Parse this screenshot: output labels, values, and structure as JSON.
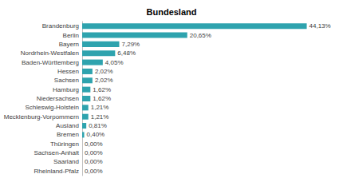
{
  "chart_data": {
    "type": "bar",
    "title": "Bundesland",
    "orientation": "horizontal",
    "categories": [
      "Brandenburg",
      "Berlin",
      "Bayern",
      "Nordrhein-Westfalen",
      "Baden-Württemberg",
      "Hessen",
      "Sachsen",
      "Hamburg",
      "Niedersachsen",
      "Schleswig-Holstein",
      "Mecklenburg-Vorpommern",
      "Ausland",
      "Bremen",
      "Thüringen",
      "Sachsen-Anhalt",
      "Saarland",
      "Rheinland-Pfalz"
    ],
    "values": [
      44.13,
      20.65,
      7.29,
      6.48,
      4.05,
      2.02,
      2.02,
      1.62,
      1.62,
      1.21,
      1.21,
      0.81,
      0.4,
      0,
      0,
      0,
      0
    ],
    "value_labels": [
      "44,13%",
      "20,65%",
      "7,29%",
      "6,48%",
      "4,05%",
      "2,02%",
      "2,02%",
      "1,62%",
      "1,62%",
      "1,21%",
      "1,21%",
      "0,81%",
      "0,40%",
      "0,00%",
      "0,00%",
      "0,00%",
      "0,00%"
    ],
    "color": "#2ea3ae",
    "xlim": [
      0,
      50
    ],
    "grid": false,
    "data_labels": true,
    "tick_labels": "y"
  }
}
